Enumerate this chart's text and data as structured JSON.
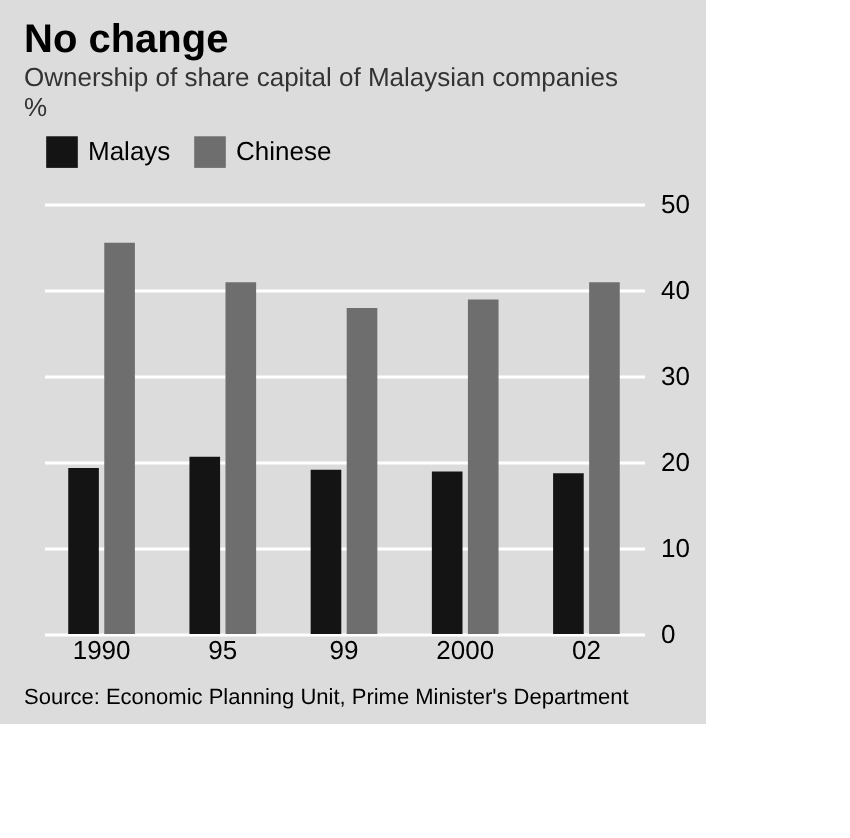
{
  "chart_data": {
    "type": "bar",
    "title": "No change",
    "subtitle": "Ownership of share capital of Malaysian companies",
    "ylabel": "%",
    "categories": [
      "1990",
      "95",
      "99",
      "2000",
      "02"
    ],
    "series": [
      {
        "name": "Malays",
        "color": "#141414",
        "values": [
          19.3,
          20.6,
          19.1,
          18.9,
          18.7
        ]
      },
      {
        "name": "Chinese",
        "color": "#6e6e6e",
        "values": [
          45.5,
          40.9,
          37.9,
          38.9,
          40.9
        ]
      }
    ],
    "ylim": [
      0,
      50
    ],
    "yticks": [
      0,
      10,
      20,
      30,
      40,
      50
    ],
    "grid": "y",
    "legend": "top left",
    "annotations": [
      "Source: Economic Planning Unit, Prime Minister's Department"
    ]
  }
}
